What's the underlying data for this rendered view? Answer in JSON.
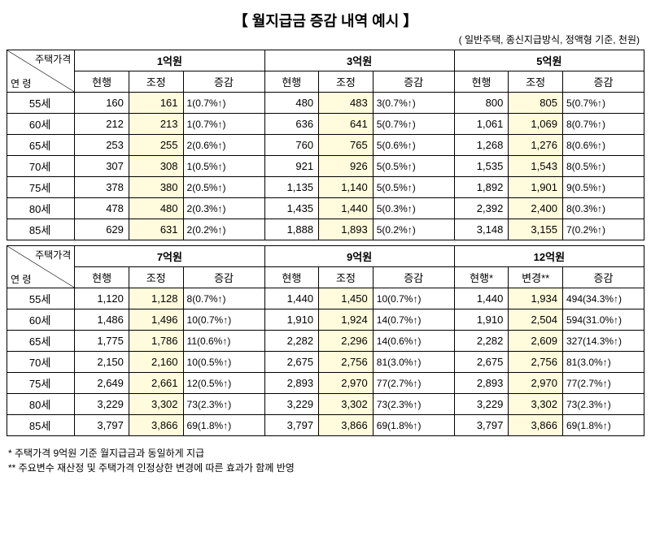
{
  "title": "【 월지급금 증감 내역 예시 】",
  "subtitle": "( 일반주택, 종신지급방식, 정액형 기준, 천원)",
  "diag_top": "주택가격",
  "diag_bottom": "연 령",
  "col_labels": {
    "current": "현행",
    "adjusted": "조정",
    "diff": "증감",
    "current_star": "현행*",
    "changed_star": "변경**"
  },
  "blocks": [
    {
      "groups": [
        "1억원",
        "3억원",
        "5억원"
      ],
      "header_mode": "normal",
      "ages": [
        "55세",
        "60세",
        "65세",
        "70세",
        "75세",
        "80세",
        "85세"
      ],
      "rows": [
        [
          {
            "a": "160",
            "b": "161",
            "d": "1(0.7%↑)"
          },
          {
            "a": "480",
            "b": "483",
            "d": "3(0.7%↑)"
          },
          {
            "a": "800",
            "b": "805",
            "d": "5(0.7%↑)"
          }
        ],
        [
          {
            "a": "212",
            "b": "213",
            "d": "1(0.7%↑)"
          },
          {
            "a": "636",
            "b": "641",
            "d": "5(0.7%↑)"
          },
          {
            "a": "1,061",
            "b": "1,069",
            "d": "8(0.7%↑)"
          }
        ],
        [
          {
            "a": "253",
            "b": "255",
            "d": "2(0.6%↑)"
          },
          {
            "a": "760",
            "b": "765",
            "d": "5(0.6%↑)"
          },
          {
            "a": "1,268",
            "b": "1,276",
            "d": "8(0.6%↑)"
          }
        ],
        [
          {
            "a": "307",
            "b": "308",
            "d": "1(0.5%↑)"
          },
          {
            "a": "921",
            "b": "926",
            "d": "5(0.5%↑)"
          },
          {
            "a": "1,535",
            "b": "1,543",
            "d": "8(0.5%↑)"
          }
        ],
        [
          {
            "a": "378",
            "b": "380",
            "d": "2(0.5%↑)"
          },
          {
            "a": "1,135",
            "b": "1,140",
            "d": "5(0.5%↑)"
          },
          {
            "a": "1,892",
            "b": "1,901",
            "d": "9(0.5%↑)"
          }
        ],
        [
          {
            "a": "478",
            "b": "480",
            "d": "2(0.3%↑)"
          },
          {
            "a": "1,435",
            "b": "1,440",
            "d": "5(0.3%↑)"
          },
          {
            "a": "2,392",
            "b": "2,400",
            "d": "8(0.3%↑)"
          }
        ],
        [
          {
            "a": "629",
            "b": "631",
            "d": "2(0.2%↑)"
          },
          {
            "a": "1,888",
            "b": "1,893",
            "d": "5(0.2%↑)"
          },
          {
            "a": "3,148",
            "b": "3,155",
            "d": "7(0.2%↑)"
          }
        ]
      ]
    },
    {
      "groups": [
        "7억원",
        "9억원",
        "12억원"
      ],
      "header_mode": "last_special",
      "ages": [
        "55세",
        "60세",
        "65세",
        "70세",
        "75세",
        "80세",
        "85세"
      ],
      "rows": [
        [
          {
            "a": "1,120",
            "b": "1,128",
            "d": "8(0.7%↑)"
          },
          {
            "a": "1,440",
            "b": "1,450",
            "d": "10(0.7%↑)"
          },
          {
            "a": "1,440",
            "b": "1,934",
            "d": "494(34.3%↑)"
          }
        ],
        [
          {
            "a": "1,486",
            "b": "1,496",
            "d": "10(0.7%↑)"
          },
          {
            "a": "1,910",
            "b": "1,924",
            "d": "14(0.7%↑)"
          },
          {
            "a": "1,910",
            "b": "2,504",
            "d": "594(31.0%↑)"
          }
        ],
        [
          {
            "a": "1,775",
            "b": "1,786",
            "d": "11(0.6%↑)"
          },
          {
            "a": "2,282",
            "b": "2,296",
            "d": "14(0.6%↑)"
          },
          {
            "a": "2,282",
            "b": "2,609",
            "d": "327(14.3%↑)"
          }
        ],
        [
          {
            "a": "2,150",
            "b": "2,160",
            "d": "10(0.5%↑)"
          },
          {
            "a": "2,675",
            "b": "2,756",
            "d": "81(3.0%↑)"
          },
          {
            "a": "2,675",
            "b": "2,756",
            "d": "81(3.0%↑)"
          }
        ],
        [
          {
            "a": "2,649",
            "b": "2,661",
            "d": "12(0.5%↑)"
          },
          {
            "a": "2,893",
            "b": "2,970",
            "d": "77(2.7%↑)"
          },
          {
            "a": "2,893",
            "b": "2,970",
            "d": "77(2.7%↑)"
          }
        ],
        [
          {
            "a": "3,229",
            "b": "3,302",
            "d": "73(2.3%↑)"
          },
          {
            "a": "3,229",
            "b": "3,302",
            "d": "73(2.3%↑)"
          },
          {
            "a": "3,229",
            "b": "3,302",
            "d": "73(2.3%↑)"
          }
        ],
        [
          {
            "a": "3,797",
            "b": "3,866",
            "d": "69(1.8%↑)"
          },
          {
            "a": "3,797",
            "b": "3,866",
            "d": "69(1.8%↑)"
          },
          {
            "a": "3,797",
            "b": "3,866",
            "d": "69(1.8%↑)"
          }
        ]
      ]
    }
  ],
  "footnote1": "* 주택가격 9억원 기준 월지급금과 동일하게 지급",
  "footnote2": "** 주요변수 재산정 및 주택가격 인정상한 변경에 따른 효과가 함께 반영"
}
